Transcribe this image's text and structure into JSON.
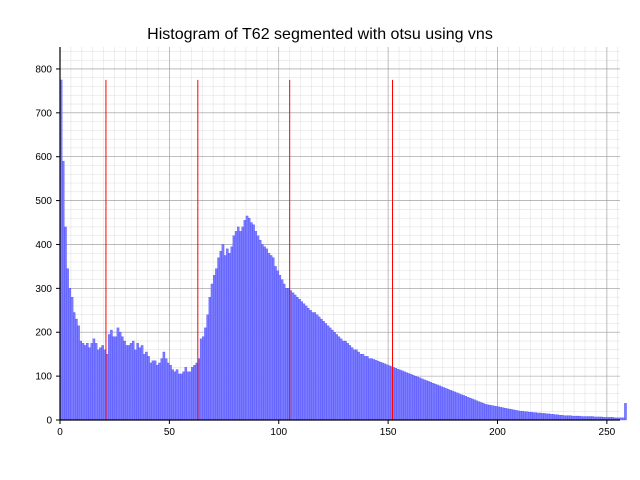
{
  "chart_data": {
    "type": "bar",
    "title": "Histogram of T62 segmented with otsu using vns",
    "xlabel": "",
    "ylabel": "",
    "xlim": [
      0,
      256
    ],
    "ylim": [
      0,
      850
    ],
    "x_ticks": [
      0,
      50,
      100,
      150,
      200,
      250
    ],
    "y_ticks": [
      0,
      100,
      200,
      300,
      400,
      500,
      600,
      700,
      800
    ],
    "bar_color": "#7b7bff",
    "bar_edge_color": "#3434ff",
    "threshold_color": "#ff0000",
    "bin_width": 1,
    "thresholds": [
      21,
      63,
      105,
      152
    ],
    "threshold_top": 775,
    "grid": "major and minor",
    "counts": [
      775,
      590,
      440,
      345,
      300,
      280,
      245,
      230,
      215,
      180,
      175,
      170,
      175,
      165,
      175,
      185,
      175,
      160,
      165,
      170,
      160,
      150,
      195,
      205,
      190,
      190,
      210,
      200,
      190,
      180,
      170,
      170,
      175,
      180,
      160,
      175,
      165,
      170,
      150,
      155,
      145,
      130,
      135,
      135,
      125,
      130,
      140,
      155,
      140,
      130,
      125,
      115,
      110,
      115,
      105,
      105,
      110,
      120,
      110,
      110,
      120,
      125,
      130,
      140,
      185,
      190,
      210,
      240,
      280,
      310,
      330,
      345,
      370,
      385,
      400,
      375,
      390,
      380,
      395,
      420,
      430,
      440,
      430,
      440,
      455,
      465,
      460,
      450,
      445,
      430,
      420,
      410,
      400,
      395,
      390,
      380,
      375,
      370,
      350,
      340,
      330,
      320,
      310,
      300,
      300,
      295,
      290,
      285,
      280,
      275,
      270,
      265,
      260,
      255,
      250,
      245,
      245,
      240,
      235,
      230,
      225,
      220,
      215,
      210,
      205,
      200,
      195,
      190,
      185,
      180,
      180,
      175,
      170,
      165,
      160,
      160,
      155,
      150,
      150,
      145,
      145,
      140,
      140,
      138,
      136,
      134,
      132,
      130,
      128,
      126,
      124,
      122,
      120,
      118,
      116,
      114,
      112,
      110,
      108,
      106,
      104,
      102,
      100,
      98,
      96,
      94,
      92,
      90,
      88,
      86,
      84,
      82,
      80,
      78,
      76,
      74,
      72,
      70,
      68,
      66,
      64,
      62,
      60,
      58,
      56,
      54,
      52,
      50,
      48,
      46,
      44,
      42,
      40,
      38,
      36,
      35,
      34,
      33,
      32,
      31,
      30,
      29,
      28,
      27,
      26,
      25,
      24,
      23,
      22,
      21,
      20,
      20,
      19,
      19,
      18,
      18,
      17,
      17,
      16,
      16,
      15,
      15,
      14,
      14,
      13,
      13,
      12,
      12,
      11,
      11,
      10,
      10,
      10,
      10,
      9,
      9,
      9,
      9,
      8,
      8,
      8,
      8,
      8,
      8,
      7,
      7,
      7,
      7,
      6,
      6,
      6,
      6,
      6,
      5,
      5,
      5,
      5,
      5,
      38
    ]
  }
}
